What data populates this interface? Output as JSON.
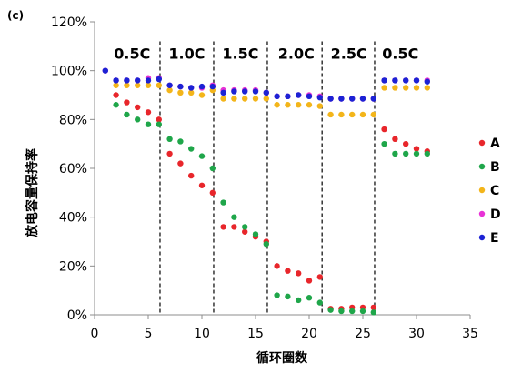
{
  "panel_label": "(c)",
  "chart_data": {
    "type": "scatter",
    "xlabel": "循环圈数",
    "ylabel": "放电容量保持率",
    "xlim": [
      0,
      35
    ],
    "ylim": [
      0,
      120
    ],
    "x_ticks": [
      "0",
      "5",
      "10",
      "15",
      "20",
      "25",
      "30",
      "35"
    ],
    "y_ticks": [
      "0%",
      "20%",
      "40%",
      "60%",
      "80%",
      "100%",
      "120%"
    ],
    "grid": false,
    "legend_position": "right",
    "rate_segments": [
      {
        "label": "0.5C",
        "x_center": 3.5
      },
      {
        "label": "1.0C",
        "x_center": 8.6
      },
      {
        "label": "1.5C",
        "x_center": 13.6
      },
      {
        "label": "2.0C",
        "x_center": 18.8
      },
      {
        "label": "2.5C",
        "x_center": 23.7
      },
      {
        "label": "0.5C",
        "x_center": 28.5
      }
    ],
    "dividers_x": [
      6.1,
      11.1,
      16.1,
      21.2,
      26.1
    ],
    "series": [
      {
        "name": "A",
        "color": "#e8262b",
        "x": [
          2,
          3,
          4,
          5,
          6,
          7,
          8,
          9,
          10,
          11,
          12,
          13,
          14,
          15,
          16,
          17,
          18,
          19,
          20,
          21,
          22,
          23,
          24,
          25,
          26,
          27,
          28,
          29,
          30,
          31
        ],
        "y": [
          90,
          87,
          85,
          83,
          80,
          66,
          62,
          57,
          53,
          50,
          36,
          36,
          34,
          32,
          30,
          20,
          18,
          17,
          14,
          15.5,
          2.5,
          2.5,
          3,
          3,
          3,
          76,
          72,
          70,
          68,
          67
        ]
      },
      {
        "name": "B",
        "color": "#1fa64a",
        "x": [
          2,
          3,
          4,
          5,
          6,
          7,
          8,
          9,
          10,
          11,
          12,
          13,
          14,
          15,
          16,
          17,
          18,
          19,
          20,
          21,
          22,
          23,
          24,
          25,
          26,
          27,
          28,
          29,
          30,
          31
        ],
        "y": [
          86,
          82,
          80,
          78,
          78,
          72,
          71,
          68,
          65,
          60,
          46,
          40,
          36,
          33,
          29,
          8,
          7.5,
          6,
          7,
          5,
          2,
          1.5,
          1.5,
          1.5,
          1,
          70,
          66,
          66,
          66,
          66
        ]
      },
      {
        "name": "C",
        "color": "#f3b51a",
        "x": [
          2,
          3,
          4,
          5,
          6,
          7,
          8,
          9,
          10,
          11,
          12,
          13,
          14,
          15,
          16,
          17,
          18,
          19,
          20,
          21,
          22,
          23,
          24,
          25,
          26,
          27,
          28,
          29,
          30,
          31
        ],
        "y": [
          94,
          94,
          94,
          94,
          94,
          92,
          91,
          91,
          90,
          92,
          88.5,
          88.5,
          88.5,
          88.5,
          88.5,
          86,
          86,
          86,
          86,
          85.5,
          82,
          82,
          82,
          82,
          82,
          93,
          93,
          93,
          93,
          93
        ]
      },
      {
        "name": "D",
        "color": "#e832d6",
        "x": [
          1,
          2,
          3,
          4,
          5,
          6,
          7,
          8,
          9,
          10,
          11,
          12,
          13,
          14,
          15,
          16,
          17,
          18,
          19,
          20,
          21,
          22,
          23,
          24,
          25,
          26,
          27,
          28,
          29,
          30,
          31
        ],
        "y": [
          100,
          96,
          96,
          96,
          97,
          97,
          94,
          93.5,
          93,
          93,
          94,
          92,
          92,
          92,
          92,
          91,
          89.5,
          89.5,
          90,
          90,
          89.5,
          88.5,
          88.5,
          88.5,
          88.5,
          88.5,
          96,
          96,
          96,
          96,
          96
        ]
      },
      {
        "name": "E",
        "color": "#1c22d4",
        "x": [
          1,
          2,
          3,
          4,
          5,
          6,
          7,
          8,
          9,
          10,
          11,
          12,
          13,
          14,
          15,
          16,
          17,
          18,
          19,
          20,
          21,
          22,
          23,
          24,
          25,
          26,
          27,
          28,
          29,
          30,
          31
        ],
        "y": [
          100,
          96,
          96,
          96,
          96,
          96.5,
          94,
          93.5,
          93,
          93.5,
          93.5,
          91,
          91.5,
          91.5,
          91.5,
          91,
          89.5,
          89.5,
          90,
          89.5,
          89,
          88.5,
          88.5,
          88.5,
          88.5,
          88.5,
          96,
          96,
          96,
          96,
          95.5
        ]
      }
    ]
  }
}
